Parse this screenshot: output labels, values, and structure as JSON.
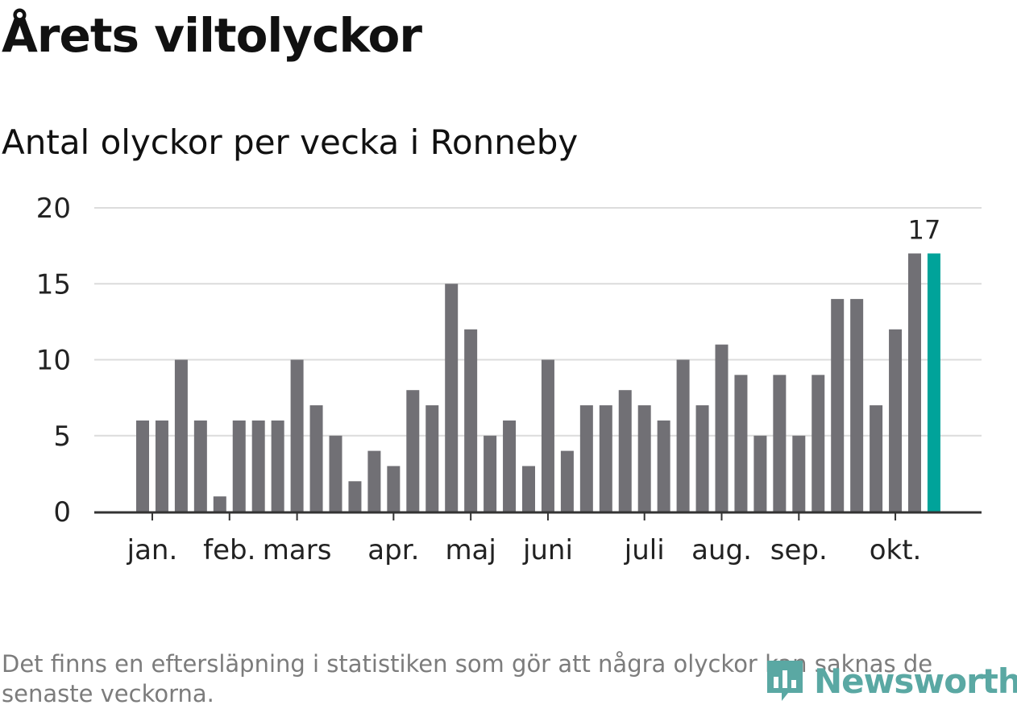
{
  "header": {
    "title": "Årets viltolyckor",
    "subtitle": "Antal olyckor per vecka i Ronneby"
  },
  "chart_data": {
    "type": "bar",
    "title": "Årets viltolyckor",
    "subtitle": "Antal olyckor per vecka i Ronneby",
    "xlabel": "",
    "ylabel": "",
    "ylim": [
      0,
      20
    ],
    "yticks": [
      0,
      5,
      10,
      15,
      20
    ],
    "grid": true,
    "values": [
      6,
      6,
      10,
      6,
      1,
      6,
      6,
      6,
      10,
      7,
      5,
      2,
      4,
      3,
      8,
      7,
      15,
      12,
      5,
      6,
      3,
      10,
      4,
      7,
      7,
      8,
      7,
      6,
      10,
      7,
      11,
      9,
      5,
      9,
      5,
      9,
      14,
      14,
      7,
      12,
      17,
      17
    ],
    "highlight_index": 41,
    "highlight_label": "17",
    "month_labels": [
      {
        "label": "jan.",
        "bar": 0.5
      },
      {
        "label": "feb.",
        "bar": 4.5
      },
      {
        "label": "mars",
        "bar": 8.0
      },
      {
        "label": "apr.",
        "bar": 13.0
      },
      {
        "label": "maj",
        "bar": 17.0
      },
      {
        "label": "juni",
        "bar": 21.0
      },
      {
        "label": "juli",
        "bar": 26.0
      },
      {
        "label": "aug.",
        "bar": 30.0
      },
      {
        "label": "sep.",
        "bar": 34.0
      },
      {
        "label": "okt.",
        "bar": 39.0
      }
    ],
    "colors": {
      "bar": "#717075",
      "highlight": "#00a39a",
      "grid": "#dcdcdc",
      "axis": "#333333",
      "text": "#222222"
    }
  },
  "footnote": "Det finns en eftersläpning i statistiken som gör att några olyckor kan saknas de senaste veckorna.",
  "logo": {
    "icon": "newsworthy-logo-icon",
    "text": "Newsworthy",
    "color": "#5aa8a3"
  }
}
